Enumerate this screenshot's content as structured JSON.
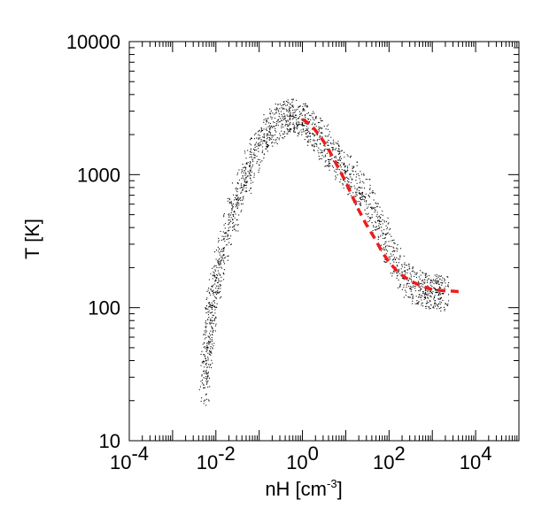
{
  "chart_data": {
    "type": "scatter",
    "title": "",
    "xlabel": "nH [cm",
    "xlabel_sup": "-3",
    "xlabel_end": "]",
    "ylabel": "T [K]",
    "xscale": "log",
    "yscale": "log",
    "xlim": [
      0.0001,
      100000
    ],
    "ylim": [
      10,
      10000
    ],
    "grid": false,
    "legend": "none",
    "x_ticks": [
      {
        "value": 0.0001,
        "base": "10",
        "exp": "-4"
      },
      {
        "value": 0.01,
        "base": "10",
        "exp": "-2"
      },
      {
        "value": 1,
        "base": "10",
        "exp": "0"
      },
      {
        "value": 100,
        "base": "10",
        "exp": "2"
      },
      {
        "value": 10000,
        "base": "10",
        "exp": "4"
      }
    ],
    "y_ticks": [
      {
        "value": 10,
        "label": "10"
      },
      {
        "value": 100,
        "label": "100"
      },
      {
        "value": 1000,
        "label": "1000"
      },
      {
        "value": 10000,
        "label": "10000"
      }
    ],
    "series": [
      {
        "kind": "scatter",
        "color": "#000000",
        "points": [
          [
            0.0055,
            25
          ],
          [
            0.006,
            40
          ],
          [
            0.0065,
            50
          ],
          [
            0.007,
            60
          ],
          [
            0.0075,
            80
          ],
          [
            0.008,
            100
          ],
          [
            0.009,
            130
          ],
          [
            0.01,
            160
          ],
          [
            0.012,
            210
          ],
          [
            0.015,
            280
          ],
          [
            0.02,
            380
          ],
          [
            0.025,
            500
          ],
          [
            0.03,
            650
          ],
          [
            0.04,
            800
          ],
          [
            0.05,
            950
          ],
          [
            0.06,
            1150
          ],
          [
            0.08,
            1400
          ],
          [
            0.1,
            1650
          ],
          [
            0.13,
            1900
          ],
          [
            0.17,
            2100
          ],
          [
            0.22,
            2300
          ],
          [
            0.3,
            2500
          ],
          [
            0.4,
            2650
          ],
          [
            0.5,
            2750
          ],
          [
            0.6,
            2750
          ],
          [
            0.8,
            2650
          ],
          [
            1.0,
            2550
          ],
          [
            1.3,
            2400
          ],
          [
            1.7,
            2200
          ],
          [
            2.2,
            2000
          ],
          [
            3.0,
            1750
          ],
          [
            4.0,
            1550
          ],
          [
            5.5,
            1350
          ],
          [
            7.5,
            1180
          ],
          [
            10,
            1050
          ],
          [
            14,
            920
          ],
          [
            20,
            800
          ],
          [
            28,
            680
          ],
          [
            40,
            560
          ],
          [
            55,
            450
          ],
          [
            75,
            360
          ],
          [
            100,
            290
          ],
          [
            140,
            230
          ],
          [
            200,
            185
          ],
          [
            280,
            160
          ],
          [
            400,
            145
          ],
          [
            550,
            138
          ],
          [
            700,
            135
          ],
          [
            900,
            132
          ],
          [
            1200,
            130
          ],
          [
            1500,
            129
          ],
          [
            1800,
            128
          ]
        ]
      },
      {
        "kind": "line",
        "style": "dashed",
        "color": "#ee1c1c",
        "points": [
          [
            1.0,
            2600
          ],
          [
            1.5,
            2400
          ],
          [
            2,
            2150
          ],
          [
            3,
            1800
          ],
          [
            4,
            1550
          ],
          [
            5,
            1350
          ],
          [
            7,
            1100
          ],
          [
            10,
            880
          ],
          [
            15,
            660
          ],
          [
            20,
            540
          ],
          [
            30,
            420
          ],
          [
            50,
            320
          ],
          [
            70,
            260
          ],
          [
            100,
            220
          ],
          [
            150,
            190
          ],
          [
            200,
            175
          ],
          [
            300,
            160
          ],
          [
            500,
            148
          ],
          [
            800,
            140
          ],
          [
            1000,
            137
          ],
          [
            1500,
            135
          ],
          [
            2000,
            134
          ],
          [
            3000,
            133
          ],
          [
            4000,
            132
          ],
          [
            5000,
            132
          ]
        ]
      }
    ]
  }
}
